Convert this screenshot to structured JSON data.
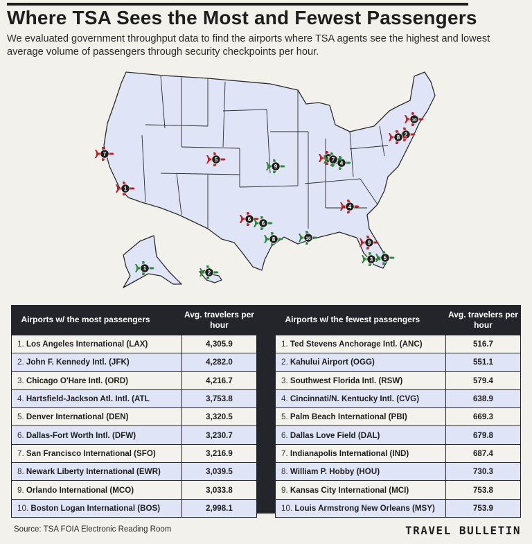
{
  "title": "Where TSA Sees the Most and Fewest Passengers",
  "subtitle": "We evaluated government throughput data to find the airports where TSA agents see the highest and lowest average volume of passengers through security checkpoints per hour.",
  "colors": {
    "most": "#c42026",
    "fewest": "#2e8a3d",
    "badge": "#1f1f1f",
    "land": "#dfe4f6",
    "border": "#2b2b2b"
  },
  "map": {
    "markers": [
      {
        "group": "most",
        "rank": "1",
        "airport": "LAX"
      },
      {
        "group": "most",
        "rank": "2",
        "airport": "JFK"
      },
      {
        "group": "most",
        "rank": "3",
        "airport": "ORD"
      },
      {
        "group": "most",
        "rank": "4",
        "airport": "ATL"
      },
      {
        "group": "most",
        "rank": "5",
        "airport": "DEN"
      },
      {
        "group": "most",
        "rank": "6",
        "airport": "DFW"
      },
      {
        "group": "most",
        "rank": "7",
        "airport": "SFO"
      },
      {
        "group": "most",
        "rank": "8",
        "airport": "EWR"
      },
      {
        "group": "most",
        "rank": "9",
        "airport": "MCO"
      },
      {
        "group": "most",
        "rank": "10",
        "airport": "BOS"
      },
      {
        "group": "fewest",
        "rank": "1",
        "airport": "ANC"
      },
      {
        "group": "fewest",
        "rank": "2",
        "airport": "OGG"
      },
      {
        "group": "fewest",
        "rank": "3",
        "airport": "RSW"
      },
      {
        "group": "fewest",
        "rank": "4",
        "airport": "CVG"
      },
      {
        "group": "fewest",
        "rank": "5",
        "airport": "PBI"
      },
      {
        "group": "fewest",
        "rank": "6",
        "airport": "DAL"
      },
      {
        "group": "fewest",
        "rank": "7",
        "airport": "IND"
      },
      {
        "group": "fewest",
        "rank": "8",
        "airport": "HOU"
      },
      {
        "group": "fewest",
        "rank": "9",
        "airport": "MCI"
      },
      {
        "group": "fewest",
        "rank": "10",
        "airport": "MSY"
      }
    ]
  },
  "most_table": {
    "header_name": "Airports w/ the most passengers",
    "header_value": "Avg. travelers per hour",
    "rows": [
      {
        "rank": "1.",
        "name": "Los Angeles International (LAX)",
        "value": "4,305.9"
      },
      {
        "rank": "2.",
        "name": "John F. Kennedy Intl. (JFK)",
        "value": "4,282.0"
      },
      {
        "rank": "3.",
        "name": "Chicago O'Hare Intl. (ORD)",
        "value": "4,216.7"
      },
      {
        "rank": "4.",
        "name": "Hartsfield-Jackson Atl. Intl. (ATL",
        "value": "3,753.8"
      },
      {
        "rank": "5.",
        "name": "Denver International (DEN)",
        "value": "3,320.5"
      },
      {
        "rank": "6.",
        "name": "Dallas-Fort Worth Intl. (DFW)",
        "value": "3,230.7"
      },
      {
        "rank": "7.",
        "name": "San Francisco International (SFO)",
        "value": "3,216.9"
      },
      {
        "rank": "8.",
        "name": "Newark Liberty International (EWR)",
        "value": "3,039.5"
      },
      {
        "rank": "9.",
        "name": "Orlando International (MCO)",
        "value": "3,033.8"
      },
      {
        "rank": "10.",
        "name": "Boston Logan International (BOS)",
        "value": "2,998.1"
      }
    ]
  },
  "fewest_table": {
    "header_name": "Airports w/ the fewest passengers",
    "header_value": "Avg. travelers per hour",
    "rows": [
      {
        "rank": "1.",
        "name": "Ted Stevens Anchorage Intl. (ANC)",
        "value": "516.7"
      },
      {
        "rank": "2.",
        "name": "Kahului Airport (OGG)",
        "value": "551.1"
      },
      {
        "rank": "3.",
        "name": "Southwest Florida Intl. (RSW)",
        "value": "579.4"
      },
      {
        "rank": "4.",
        "name": "Cincinnati/N. Kentucky Intl. (CVG)",
        "value": "638.9"
      },
      {
        "rank": "5.",
        "name": "Palm Beach International (PBI)",
        "value": "669.3"
      },
      {
        "rank": "6.",
        "name": "Dallas Love Field (DAL)",
        "value": "679.8"
      },
      {
        "rank": "7.",
        "name": "Indianapolis International (IND)",
        "value": "687.4"
      },
      {
        "rank": "8.",
        "name": "William P. Hobby (HOU)",
        "value": "730.3"
      },
      {
        "rank": "9.",
        "name": "Kansas City International (MCI)",
        "value": "753.8"
      },
      {
        "rank": "10.",
        "name": "Louis Armstrong New Orleans (MSY)",
        "value": "753.9"
      }
    ]
  },
  "source": "Source: TSA FOIA Electronic Reading Room",
  "brand": "TRAVEL BULLETIN"
}
